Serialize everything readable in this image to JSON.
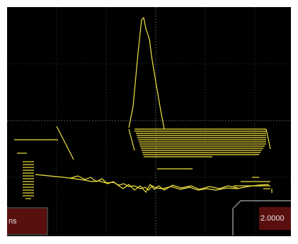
{
  "scope": {
    "trace_color": "#f2e33d",
    "grid_color": "#3c3c3c",
    "background_color": "#000000",
    "readout_bg_color": "#5a0f0f"
  },
  "readouts": {
    "left_value": "ns",
    "right_value": "2.0000"
  }
}
